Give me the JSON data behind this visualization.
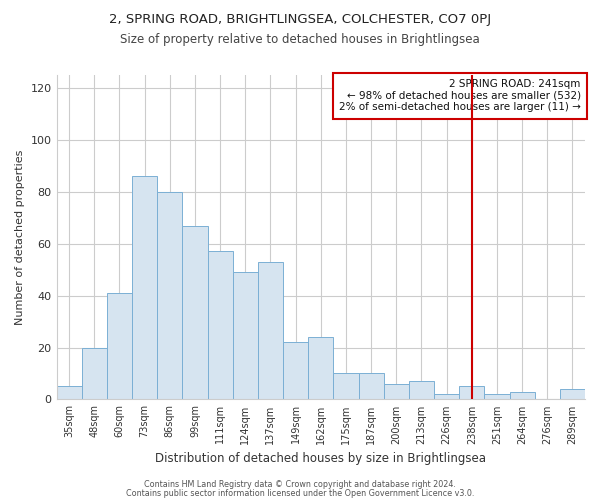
{
  "title": "2, SPRING ROAD, BRIGHTLINGSEA, COLCHESTER, CO7 0PJ",
  "subtitle": "Size of property relative to detached houses in Brightlingsea",
  "xlabel": "Distribution of detached houses by size in Brightlingsea",
  "ylabel": "Number of detached properties",
  "footer_line1": "Contains HM Land Registry data © Crown copyright and database right 2024.",
  "footer_line2": "Contains public sector information licensed under the Open Government Licence v3.0.",
  "bar_labels": [
    "35sqm",
    "48sqm",
    "60sqm",
    "73sqm",
    "86sqm",
    "99sqm",
    "111sqm",
    "124sqm",
    "137sqm",
    "149sqm",
    "162sqm",
    "175sqm",
    "187sqm",
    "200sqm",
    "213sqm",
    "226sqm",
    "238sqm",
    "251sqm",
    "264sqm",
    "276sqm",
    "289sqm"
  ],
  "bar_values": [
    5,
    20,
    41,
    86,
    80,
    67,
    57,
    49,
    53,
    22,
    24,
    10,
    10,
    6,
    7,
    2,
    5,
    2,
    3,
    0,
    4
  ],
  "bar_color": "#d6e4f0",
  "bar_edge_color": "#7bafd4",
  "grid_color": "#cccccc",
  "vline_x_index": 16,
  "vline_color": "#cc0000",
  "annotation_title": "2 SPRING ROAD: 241sqm",
  "annotation_line1": "← 98% of detached houses are smaller (532)",
  "annotation_line2": "2% of semi-detached houses are larger (11) →",
  "annotation_box_color": "#cc0000",
  "ylim": [
    0,
    125
  ],
  "yticks": [
    0,
    20,
    40,
    60,
    80,
    100,
    120
  ],
  "background_color": "#ffffff",
  "title_fontsize": 9.5,
  "subtitle_fontsize": 8.5
}
